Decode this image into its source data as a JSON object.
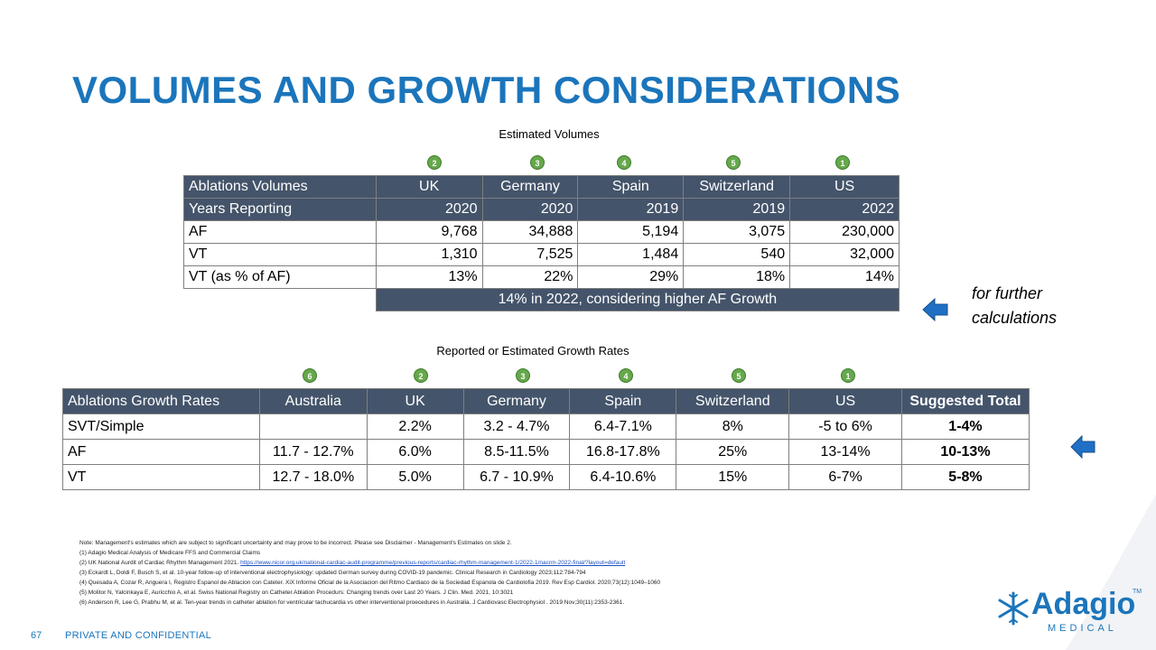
{
  "title": "VOLUMES AND GROWTH CONSIDERATIONS",
  "volumes": {
    "caption": "Estimated Volumes",
    "badges": [
      "2",
      "3",
      "4",
      "5",
      "1"
    ],
    "header": [
      "Ablations Volumes",
      "UK",
      "Germany",
      "Spain",
      "Switzerland",
      "US"
    ],
    "years": [
      "Years Reporting",
      "2020",
      "2020",
      "2019",
      "2019",
      "2022"
    ],
    "rows": [
      [
        "AF",
        "9,768",
        "34,888",
        "5,194",
        "3,075",
        "230,000"
      ],
      [
        "VT",
        "1,310",
        "7,525",
        "1,484",
        "540",
        "32,000"
      ],
      [
        "VT (as % of AF)",
        "13%",
        "22%",
        "29%",
        "18%",
        "14%"
      ]
    ],
    "summary": "14% in 2022, considering higher AF Growth"
  },
  "growth": {
    "caption": "Reported or Estimated Growth Rates",
    "badges": [
      "6",
      "2",
      "3",
      "4",
      "5",
      "1"
    ],
    "header": [
      "Ablations Growth Rates",
      "Australia",
      "UK",
      "Germany",
      "Spain",
      "Switzerland",
      "US",
      "Suggested Total"
    ],
    "rows": [
      [
        "SVT/Simple",
        "",
        "2.2%",
        "3.2 - 4.7%",
        "6.4-7.1%",
        "8%",
        "-5 to 6%",
        "1-4%"
      ],
      [
        "AF",
        "11.7 - 12.7%",
        "6.0%",
        "8.5-11.5%",
        "16.8-17.8%",
        "25%",
        "13-14%",
        "10-13%"
      ],
      [
        "VT",
        "12.7 - 18.0%",
        "5.0%",
        "6.7 - 10.9%",
        "6.4-10.6%",
        "15%",
        "6-7%",
        "5-8%"
      ]
    ]
  },
  "side_note": {
    "line1": "for further",
    "line2": "calculations"
  },
  "notes": {
    "l0": "Note: Management's estimates which are subject to significant uncertainty and may prove to be incorrect. Please see Disclaimer - Management's Estimates on slide 2.",
    "l1": "(1) Adagio Medical Analysis of Medicare FFS and Commercial Claims",
    "l2": "(2) UK National Aurdit of Cardiac Rhythm Management 2021.",
    "l2_link": "https://www.nicor.org.uk/national-cardiac-audit-programme/previous-reports/cardiac-rhythm-management-1/2022-1/nacrm-2022-final/?layout=default",
    "l3": "(3) Eckardt L, Doldi F, Busch S, et al. 10-year follow-up of interventional electrophysiology: updated German survey during COVID-19 pandemic. Clinical Research in Cardiology 2023;112:784-794",
    "l4": "(4) Quesada A, Cozar R, Anguera I, Registro Espanol de Ablacion con Cateter. XiX Informe Oficial de la Asociacion del Ritmo Cardiaco de la Sociedad Espanola de Cardiolofia 2019. Rev Esp Cardiol. 2020;73(12):1049–1060",
    "l5": "(5) Molitor N, Yalcinkaya E, Auricchio A, et al. Swiss National Registry on Catheter Ablation Procedurs: Changing trends over Last 20 Years. J Clin. Med. 2021, 10:3021",
    "l6": "(6) Anderson R, Lee G, Prabhu M, et al. Ten-year trends in catheter ablation for ventricular tachucardia vs other interventional proecedures in Australia. J Cardiovasc Electrophysiol . 2019 Nov;30(11):2353-2361."
  },
  "footer": {
    "page_number": "67",
    "confidential": "PRIVATE AND CONFIDENTIAL"
  },
  "logo": {
    "name": "Adagio",
    "sub": "MEDICAL",
    "tm": "TM"
  },
  "colors": {
    "brand_blue": "#1b75bb",
    "header_fill": "#44546a",
    "badge_green": "#66a84c",
    "arrow_blue": "#1f6fc5"
  }
}
